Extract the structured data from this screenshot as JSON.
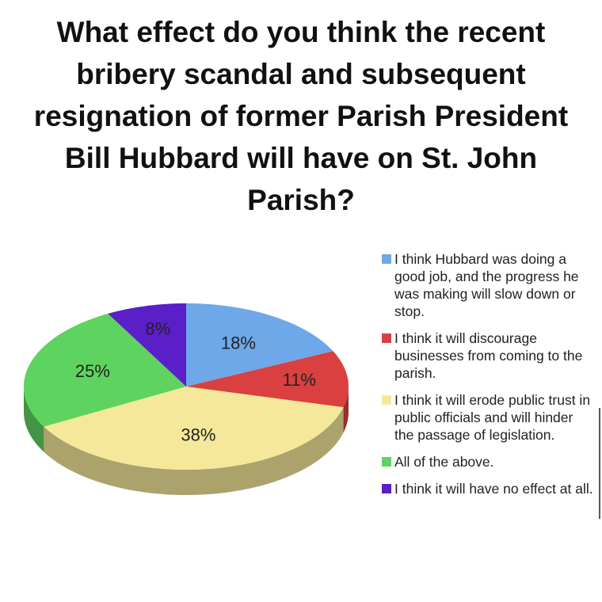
{
  "chart_data": {
    "type": "pie3d",
    "title": "What effect do you think the recent bribery scandal and subsequent resignation of former Parish President Bill Hubbard will have on St. John Parish?",
    "categories": [
      "I think Hubbard was doing a good job, and the progress he was making will slow down or stop.",
      "I think it will discourage businesses from coming to the parish.",
      "I think it will erode public trust in public officials and will hinder the passage of legislation.",
      "All of the above.",
      "I think it will have no effect at all."
    ],
    "values": [
      18,
      11,
      38,
      25,
      8
    ],
    "value_labels": [
      "18%",
      "11%",
      "38%",
      "25%",
      "8%"
    ],
    "colors": [
      "#6fa8e8",
      "#d9403f",
      "#f5e89a",
      "#5fd35f",
      "#5a1fc8"
    ],
    "legend": "right"
  }
}
